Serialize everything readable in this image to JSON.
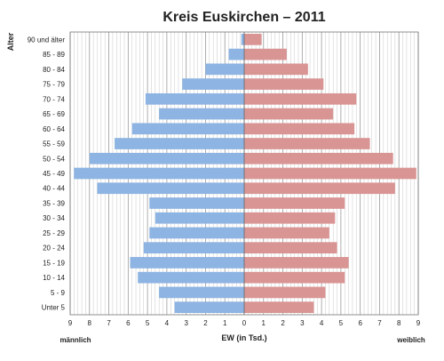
{
  "chart_data": {
    "type": "bar",
    "orientation": "horizontal-population-pyramid",
    "title": "Kreis Euskirchen – 2011",
    "ylabel": "Alter",
    "xlabel": "EW (in Tsd.)",
    "left_label": "männlich",
    "right_label": "weiblich",
    "xlim": [
      -9,
      9
    ],
    "x_ticks": [
      9,
      8,
      7,
      6,
      5,
      4,
      3,
      2,
      1,
      0,
      1,
      2,
      3,
      4,
      5,
      6,
      7,
      8,
      9
    ],
    "grid": true,
    "categories": [
      "90 und älter",
      "85 - 89",
      "80 - 84",
      "75 - 79",
      "70 - 74",
      "65 - 69",
      "60 - 64",
      "55 - 59",
      "50 - 54",
      "45 - 49",
      "40 - 44",
      "35 - 39",
      "30 - 34",
      "25 - 29",
      "20 - 24",
      "15 - 19",
      "10 - 14",
      "5 - 9",
      "Unter 5"
    ],
    "series": [
      {
        "name": "männlich",
        "color": "#8db4e2",
        "values": [
          0.15,
          0.8,
          2.0,
          3.2,
          5.1,
          4.4,
          5.8,
          6.7,
          8.0,
          8.8,
          7.6,
          4.9,
          4.6,
          4.9,
          5.2,
          5.9,
          5.5,
          4.4,
          3.6
        ]
      },
      {
        "name": "weiblich",
        "color": "#d99594",
        "values": [
          0.9,
          2.2,
          3.3,
          4.1,
          5.8,
          4.6,
          5.7,
          6.5,
          7.7,
          8.9,
          7.8,
          5.2,
          4.7,
          4.4,
          4.8,
          5.4,
          5.2,
          4.2,
          3.6
        ]
      }
    ]
  }
}
